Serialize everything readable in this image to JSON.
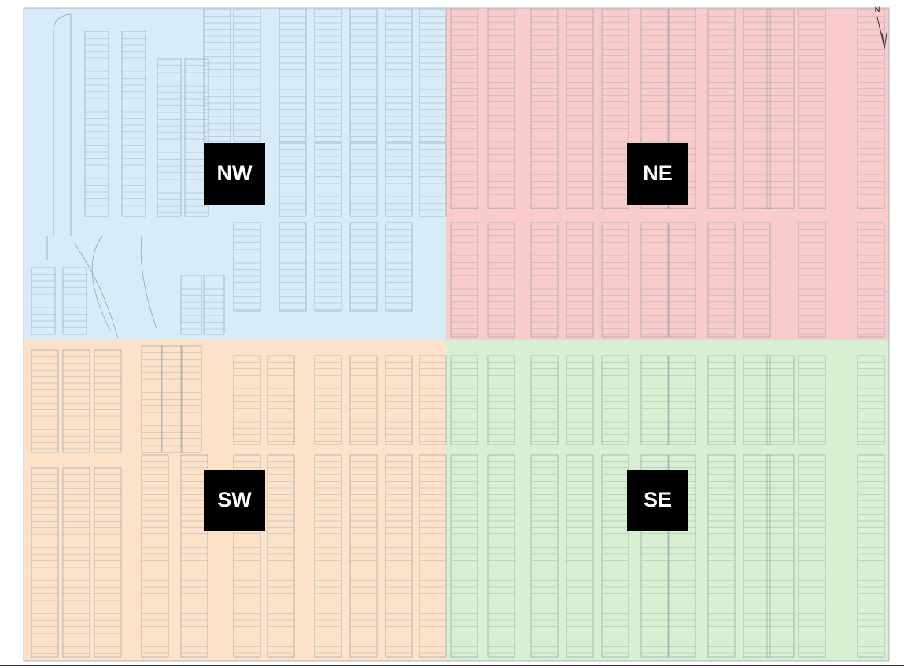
{
  "compass": {
    "label": "N"
  },
  "sections": [
    {
      "label": "NW"
    },
    {
      "label": "NE"
    },
    {
      "label": "SW"
    },
    {
      "label": "SE"
    }
  ]
}
